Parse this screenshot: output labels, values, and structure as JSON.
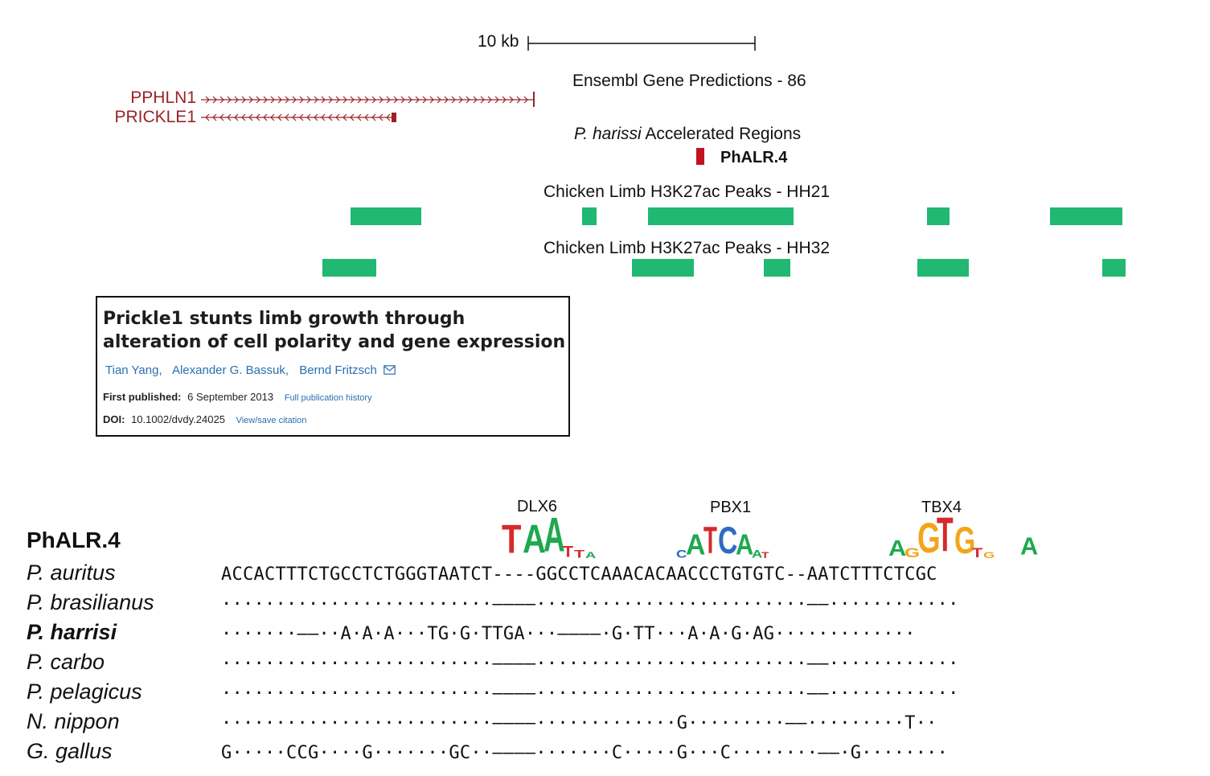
{
  "scale": {
    "label": "10 kb"
  },
  "tracks": {
    "ensembl_title": "Ensembl Gene Predictions - 86",
    "genes": [
      "PPHLN1",
      "PRICKLE1"
    ],
    "accelerated_prefix": "P. harissi",
    "accelerated_suffix": "Accelerated Regions",
    "region_label": "PhALR.4",
    "hh21_title": "Chicken Limb H3K27ac Peaks - HH21",
    "hh32_title": "Chicken Limb H3K27ac Peaks - HH32"
  },
  "paper": {
    "title": "Prickle1 stunts limb growth through alteration of cell polarity and gene expression",
    "authors": [
      "Tian Yang,",
      "Alexander G. Bassuk,",
      "Bernd Fritzsch"
    ],
    "first_published_label": "First published:",
    "first_published_value": "6 September 2013",
    "history_link": "Full publication history",
    "doi_label": "DOI:",
    "doi_value": "10.1002/dvdy.24025",
    "citation_link": "View/save citation"
  },
  "motifs": {
    "dlx6": "DLX6",
    "pbx1": "PBX1",
    "tbx4": "TBX4",
    "dlx6_logo": "TAATTA",
    "pbx1_logo": "CATCAAT",
    "tbx4_logo": "AGGTGTG",
    "extra_logo": "A"
  },
  "alignment": {
    "title": "PhALR.4",
    "rows": [
      {
        "species": "P. auritus",
        "seq": "ACCACTTTCTGCCTCTGGGTAATCT----GGCCTCAAACACAACCCTGTGTC--AATCTTTCTCGC"
      },
      {
        "species": "P. brasilianus",
        "seq": "·························––––·························––············"
      },
      {
        "species": "P. harrisi",
        "seq": "·······––··A·A·A···TG·G·TTGA···––––·G·TT···A·A·G·AG·············"
      },
      {
        "species": "P. carbo",
        "seq": "·························––––·························––············"
      },
      {
        "species": "P. pelagicus",
        "seq": "·························––––·························––············"
      },
      {
        "species": "N. nippon",
        "seq": "·························––––·············G·········––·········T··"
      },
      {
        "species": "G. gallus",
        "seq": "G·····CCG····G·······GC··––––·······C·····G···C········––·G········"
      }
    ]
  },
  "colors": {
    "gene_red": "#9b2226",
    "peak_green": "#20b873",
    "region_red": "#c1121f",
    "link_blue": "#2a6fb0",
    "logo_A": "#1fa84f",
    "logo_C": "#2d6cc0",
    "logo_G": "#f2a51a",
    "logo_T": "#d62a2a"
  }
}
